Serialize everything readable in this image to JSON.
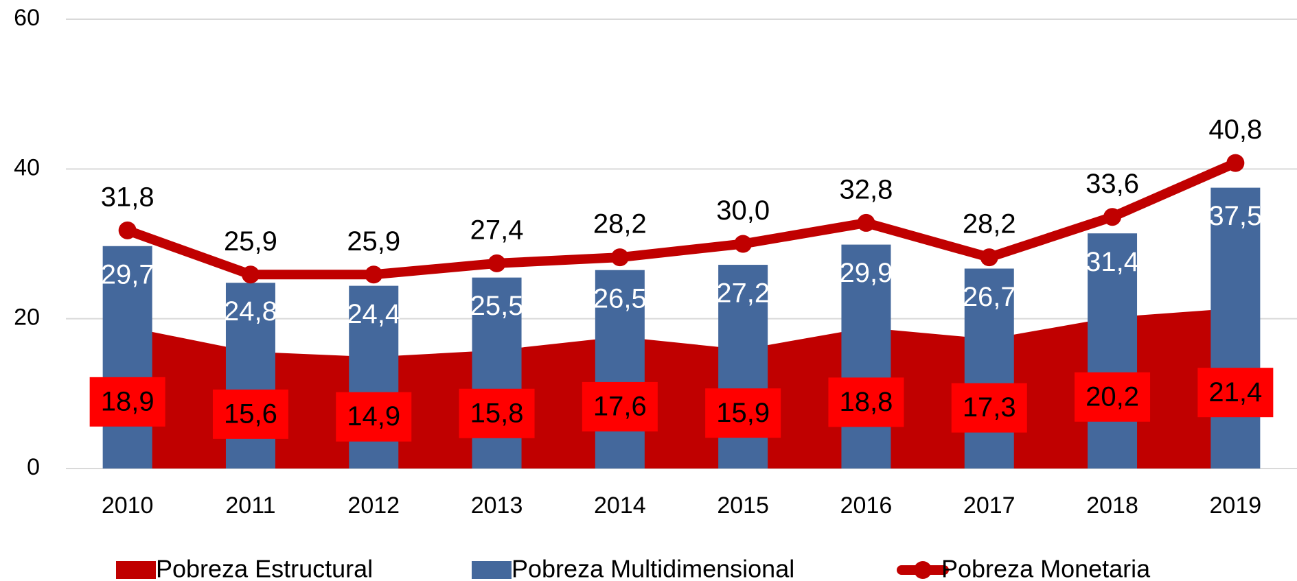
{
  "chart_data": {
    "type": "combo",
    "categories": [
      "2010",
      "2011",
      "2012",
      "2013",
      "2014",
      "2015",
      "2016",
      "2017",
      "2018",
      "2019"
    ],
    "ylim": [
      0,
      60
    ],
    "yticks": [
      0,
      20,
      40,
      60
    ],
    "grid": true,
    "legend": "bottom",
    "series": [
      {
        "name": "Pobreza Estructural",
        "type": "area",
        "color": "#c00000",
        "values": [
          18.9,
          15.6,
          14.9,
          15.8,
          17.6,
          15.9,
          18.8,
          17.3,
          20.2,
          21.4
        ],
        "value_labels": [
          "18,9",
          "15,6",
          "14,9",
          "15,8",
          "17,6",
          "15,9",
          "18,8",
          "17,3",
          "20,2",
          "21,4"
        ]
      },
      {
        "name": "Pobreza Multidimensional",
        "type": "bar",
        "color": "#44689c",
        "values": [
          29.7,
          24.8,
          24.4,
          25.5,
          26.5,
          27.2,
          29.9,
          26.7,
          31.4,
          37.5
        ],
        "value_labels": [
          "29,7",
          "24,8",
          "24,4",
          "25,5",
          "26,5",
          "27,2",
          "29,9",
          "26,7",
          "31,4",
          "37,5"
        ]
      },
      {
        "name": "Pobreza Monetaria",
        "type": "line",
        "color": "#c00000",
        "values": [
          31.8,
          25.9,
          25.9,
          27.4,
          28.2,
          30.0,
          32.8,
          28.2,
          33.6,
          40.8
        ],
        "value_labels": [
          "31,8",
          "25,9",
          "25,9",
          "27,4",
          "28,2",
          "30,0",
          "32,8",
          "28,2",
          "33,6",
          "40,8"
        ]
      }
    ]
  }
}
